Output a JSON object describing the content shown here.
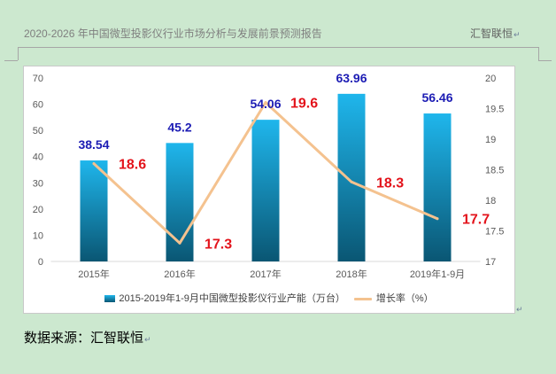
{
  "header": {
    "title": "2020-2026 年中国微型投影仪行业市场分析与发展前景预测报告",
    "brand": "汇智联恒"
  },
  "paragraph_mark": "↵",
  "source_note": "数据来源：汇智联恒",
  "colors": {
    "page_background": "#cce8cf",
    "bar_top": "#1fb6ec",
    "bar_bottom": "#0a5673",
    "line": "#f4c28f",
    "bar_label": "#1c1cb4",
    "line_label": "#e3131b"
  },
  "chart_data": {
    "type": "bar",
    "categories": [
      "2015年",
      "2016年",
      "2017年",
      "2018年",
      "2019年1-9月"
    ],
    "series": [
      {
        "name": "2015-2019年1-9月中国微型投影仪行业产能（万台）",
        "type": "bar",
        "axis": "left",
        "values": [
          38.54,
          45.2,
          54.06,
          63.96,
          56.46
        ]
      },
      {
        "name": "增长率（%）",
        "type": "line",
        "axis": "right",
        "values": [
          18.6,
          17.3,
          19.6,
          18.3,
          17.7
        ]
      }
    ],
    "y_left": {
      "range": [
        0,
        70
      ],
      "ticks": [
        0,
        10,
        20,
        30,
        40,
        50,
        60,
        70
      ]
    },
    "y_right": {
      "range": [
        17,
        20
      ],
      "ticks": [
        17,
        17.5,
        18,
        18.5,
        19,
        19.5,
        20
      ]
    },
    "grid": false,
    "legend": "bottom",
    "data_labels": true
  }
}
